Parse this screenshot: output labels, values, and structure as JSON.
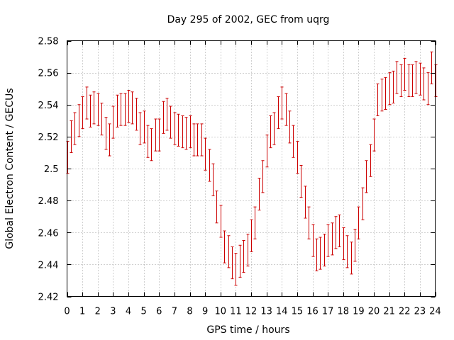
{
  "chart_data": {
    "type": "scatter",
    "title": "Day 295 of 2002, GEC from uqrg",
    "xlabel": "GPS time / hours",
    "ylabel": "Global Electron Content / GECUs",
    "xlim": [
      0,
      24
    ],
    "ylim": [
      2.42,
      2.58
    ],
    "xticks": [
      0,
      1,
      2,
      3,
      4,
      5,
      6,
      7,
      8,
      9,
      10,
      11,
      12,
      13,
      14,
      15,
      16,
      17,
      18,
      19,
      20,
      21,
      22,
      23,
      24
    ],
    "yticks": [
      2.42,
      2.44,
      2.46,
      2.48,
      2.5,
      2.52,
      2.54,
      2.56,
      2.58
    ],
    "ytick_labels": [
      "2.42",
      "2.44",
      "2.46",
      "2.48",
      "2.5",
      "2.52",
      "2.54",
      "2.56",
      "2.58"
    ],
    "grid": true,
    "error_half_width": 0.01,
    "series": [
      {
        "color": "#cc0000",
        "x": [
          0.0,
          0.25,
          0.5,
          0.75,
          1.0,
          1.25,
          1.5,
          1.75,
          2.0,
          2.25,
          2.5,
          2.75,
          3.0,
          3.25,
          3.5,
          3.75,
          4.0,
          4.25,
          4.5,
          4.75,
          5.0,
          5.25,
          5.5,
          5.75,
          6.0,
          6.25,
          6.5,
          6.75,
          7.0,
          7.25,
          7.5,
          7.75,
          8.0,
          8.25,
          8.5,
          8.75,
          9.0,
          9.25,
          9.5,
          9.75,
          10.0,
          10.25,
          10.5,
          10.75,
          11.0,
          11.25,
          11.5,
          11.75,
          12.0,
          12.25,
          12.5,
          12.75,
          13.0,
          13.25,
          13.5,
          13.75,
          14.0,
          14.25,
          14.5,
          14.75,
          15.0,
          15.25,
          15.5,
          15.75,
          16.0,
          16.25,
          16.5,
          16.75,
          17.0,
          17.25,
          17.5,
          17.75,
          18.0,
          18.25,
          18.5,
          18.75,
          19.0,
          19.25,
          19.5,
          19.75,
          20.0,
          20.25,
          20.5,
          20.75,
          21.0,
          21.25,
          21.5,
          21.75,
          22.0,
          22.25,
          22.5,
          22.75,
          23.0,
          23.25,
          23.5,
          23.75,
          24.0
        ],
        "y": [
          2.507,
          2.52,
          2.525,
          2.53,
          2.535,
          2.541,
          2.536,
          2.538,
          2.537,
          2.531,
          2.522,
          2.518,
          2.529,
          2.536,
          2.537,
          2.537,
          2.539,
          2.538,
          2.534,
          2.525,
          2.526,
          2.517,
          2.515,
          2.521,
          2.521,
          2.532,
          2.534,
          2.529,
          2.525,
          2.524,
          2.523,
          2.522,
          2.523,
          2.518,
          2.518,
          2.518,
          2.509,
          2.502,
          2.493,
          2.476,
          2.467,
          2.451,
          2.448,
          2.441,
          2.437,
          2.442,
          2.445,
          2.449,
          2.458,
          2.466,
          2.484,
          2.495,
          2.511,
          2.523,
          2.525,
          2.535,
          2.541,
          2.537,
          2.526,
          2.517,
          2.507,
          2.492,
          2.479,
          2.466,
          2.455,
          2.446,
          2.447,
          2.449,
          2.455,
          2.456,
          2.46,
          2.461,
          2.453,
          2.448,
          2.444,
          2.452,
          2.466,
          2.478,
          2.495,
          2.505,
          2.521,
          2.543,
          2.546,
          2.547,
          2.55,
          2.551,
          2.557,
          2.555,
          2.559,
          2.555,
          2.555,
          2.557,
          2.556,
          2.553,
          2.55,
          2.563,
          2.555
        ]
      }
    ]
  }
}
